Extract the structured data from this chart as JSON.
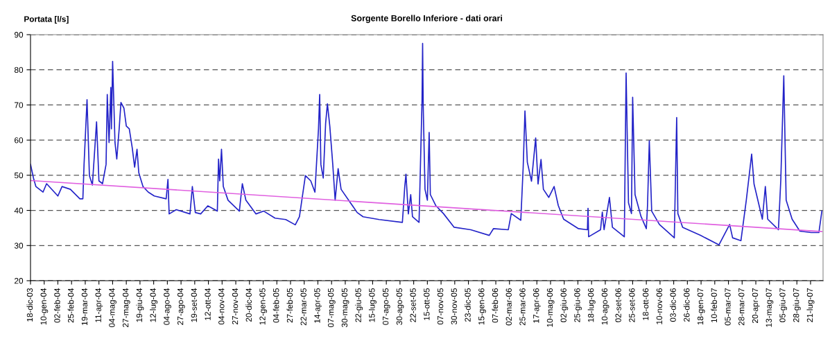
{
  "chart_data": {
    "type": "line",
    "title": "Sorgente Borello Inferiore - dati orari",
    "ylabel": "Portata [l/s]",
    "series": [
      {
        "color": "#2323c8",
        "x": [
          "2003-12-18",
          "2003-12-23",
          "2003-12-27",
          "2004-01-08",
          "2004-01-14",
          "2004-02-02",
          "2004-02-09",
          "2004-02-23",
          "2004-03-10",
          "2004-03-15",
          "2004-03-17",
          "2004-03-22",
          "2004-03-26",
          "2004-03-31",
          "2004-04-07",
          "2004-04-11",
          "2004-04-17",
          "2004-04-23",
          "2004-04-25",
          "2004-04-28",
          "2004-05-01",
          "2004-05-02",
          "2004-05-04",
          "2004-05-08",
          "2004-05-11",
          "2004-05-15",
          "2004-05-18",
          "2004-05-23",
          "2004-05-27",
          "2004-06-01",
          "2004-06-06",
          "2004-06-10",
          "2004-06-14",
          "2004-06-17",
          "2004-06-24",
          "2004-07-03",
          "2004-07-13",
          "2004-08-02",
          "2004-08-05",
          "2004-08-07",
          "2004-08-19",
          "2004-09-11",
          "2004-09-15",
          "2004-09-20",
          "2004-09-29",
          "2004-10-11",
          "2004-10-27",
          "2004-10-29",
          "2004-10-31",
          "2004-11-03",
          "2004-11-06",
          "2004-11-14",
          "2004-12-03",
          "2004-12-08",
          "2004-12-14",
          "2004-12-31",
          "2005-01-13",
          "2005-02-01",
          "2005-02-19",
          "2005-03-07",
          "2005-03-14",
          "2005-03-24",
          "2005-04-02",
          "2005-04-09",
          "2005-04-15",
          "2005-04-17",
          "2005-04-19",
          "2005-04-23",
          "2005-04-27",
          "2005-04-30",
          "2005-05-04",
          "2005-05-09",
          "2005-05-13",
          "2005-05-18",
          "2005-05-23",
          "2005-06-08",
          "2005-06-19",
          "2005-06-29",
          "2005-07-26",
          "2005-09-03",
          "2005-09-07",
          "2005-09-09",
          "2005-09-13",
          "2005-09-17",
          "2005-09-20",
          "2005-10-01",
          "2005-10-06",
          "2005-10-07",
          "2005-10-08",
          "2005-10-11",
          "2005-10-15",
          "2005-10-18",
          "2005-10-20",
          "2005-10-29",
          "2005-11-11",
          "2005-11-29",
          "2005-12-27",
          "2006-01-27",
          "2006-02-03",
          "2006-02-28",
          "2006-03-05",
          "2006-03-21",
          "2006-03-25",
          "2006-03-28",
          "2006-04-01",
          "2006-04-08",
          "2006-04-15",
          "2006-04-19",
          "2006-04-24",
          "2006-04-28",
          "2006-05-07",
          "2006-05-16",
          "2006-05-23",
          "2006-06-01",
          "2006-06-26",
          "2006-07-11",
          "2006-07-12",
          "2006-07-13",
          "2006-08-02",
          "2006-08-05",
          "2006-08-08",
          "2006-08-17",
          "2006-08-22",
          "2006-09-11",
          "2006-09-14",
          "2006-09-18",
          "2006-09-23",
          "2006-09-25",
          "2006-09-29",
          "2006-10-09",
          "2006-10-18",
          "2006-10-20",
          "2006-10-23",
          "2006-10-27",
          "2006-11-09",
          "2006-12-04",
          "2006-12-08",
          "2006-12-10",
          "2006-12-18",
          "2007-01-17",
          "2007-02-17",
          "2007-03-07",
          "2007-03-12",
          "2007-03-26",
          "2007-04-04",
          "2007-04-13",
          "2007-04-17",
          "2007-05-01",
          "2007-05-06",
          "2007-05-10",
          "2007-05-28",
          "2007-06-01",
          "2007-06-06",
          "2007-06-10",
          "2007-06-20",
          "2007-07-03",
          "2007-07-22",
          "2007-08-04",
          "2007-08-09"
        ],
        "values": [
          53.1,
          49.2,
          46.8,
          45.2,
          47.6,
          44.1,
          46.8,
          46.0,
          43.3,
          43.3,
          53.1,
          71.5,
          49.9,
          47.2,
          65.2,
          48.4,
          47.6,
          53.1,
          73.0,
          59.3,
          75.0,
          63.2,
          82.4,
          59.3,
          54.6,
          63.2,
          70.7,
          69.1,
          64.0,
          63.2,
          57.8,
          52.3,
          57.4,
          50.7,
          46.8,
          45.2,
          44.1,
          43.3,
          48.8,
          39.0,
          40.2,
          39.0,
          46.8,
          39.4,
          39.0,
          41.3,
          39.8,
          54.6,
          48.4,
          57.4,
          46.8,
          42.9,
          39.8,
          47.6,
          42.9,
          39.0,
          39.8,
          37.8,
          37.4,
          35.9,
          38.2,
          49.9,
          48.4,
          45.2,
          63.2,
          73.0,
          53.1,
          49.2,
          64.8,
          70.3,
          64.0,
          53.1,
          42.9,
          51.9,
          46.0,
          42.1,
          39.4,
          38.2,
          37.4,
          36.6,
          46.8,
          50.3,
          39.0,
          44.5,
          38.2,
          36.6,
          71.1,
          87.5,
          69.8,
          46.0,
          42.9,
          62.2,
          44.5,
          41.4,
          39.1,
          35.2,
          34.5,
          32.9,
          34.8,
          34.5,
          39.1,
          37.2,
          52.2,
          68.3,
          53.7,
          48.3,
          60.6,
          47.5,
          54.5,
          46.0,
          43.7,
          46.8,
          41.4,
          37.5,
          34.8,
          34.5,
          40.6,
          32.5,
          34.5,
          39.5,
          34.5,
          43.7,
          35.2,
          32.5,
          79.1,
          42.2,
          39.1,
          72.2,
          44.5,
          38.3,
          34.8,
          41.4,
          59.8,
          39.8,
          36.0,
          32.2,
          66.4,
          39.1,
          35.2,
          32.9,
          30.2,
          36.0,
          32.2,
          31.4,
          42.9,
          56.0,
          47.5,
          37.5,
          46.8,
          37.5,
          34.5,
          48.7,
          78.3,
          42.9,
          37.5,
          34.1,
          33.7,
          33.7,
          39.8
        ]
      },
      {
        "color": "#e060e0",
        "x": [
          "2003-12-18",
          "2007-08-09"
        ],
        "values": [
          48.5,
          34.0
        ]
      }
    ],
    "xlim": [
      "2003-12-18",
      "2007-08-11"
    ],
    "xticks": [
      {
        "value": "2003-12-18",
        "label": "18-dic-03"
      },
      {
        "value": "2004-01-10",
        "label": "10-gen-04"
      },
      {
        "value": "2004-02-02",
        "label": "02-feb-04"
      },
      {
        "value": "2004-02-25",
        "label": "25-feb-04"
      },
      {
        "value": "2004-03-19",
        "label": "19-mar-04"
      },
      {
        "value": "2004-04-11",
        "label": "11-apr-04"
      },
      {
        "value": "2004-05-04",
        "label": "04-mag-04"
      },
      {
        "value": "2004-05-27",
        "label": "27-mag-04"
      },
      {
        "value": "2004-06-19",
        "label": "19-giu-04"
      },
      {
        "value": "2004-07-12",
        "label": "12-lug-04"
      },
      {
        "value": "2004-08-04",
        "label": "04-ago-04"
      },
      {
        "value": "2004-08-27",
        "label": "27-ago-04"
      },
      {
        "value": "2004-09-19",
        "label": "19-set-04"
      },
      {
        "value": "2004-10-12",
        "label": "12-ott-04"
      },
      {
        "value": "2004-11-04",
        "label": "04-nov-04"
      },
      {
        "value": "2004-11-27",
        "label": "27-nov-04"
      },
      {
        "value": "2004-12-20",
        "label": "20-dic-04"
      },
      {
        "value": "2005-01-12",
        "label": "12-gen-05"
      },
      {
        "value": "2005-02-04",
        "label": "04-feb-05"
      },
      {
        "value": "2005-02-27",
        "label": "27-feb-05"
      },
      {
        "value": "2005-03-22",
        "label": "22-mar-05"
      },
      {
        "value": "2005-04-14",
        "label": "14-apr-05"
      },
      {
        "value": "2005-05-07",
        "label": "07-mag-05"
      },
      {
        "value": "2005-05-30",
        "label": "30-mag-05"
      },
      {
        "value": "2005-06-22",
        "label": "22-giu-05"
      },
      {
        "value": "2005-07-15",
        "label": "15-lug-05"
      },
      {
        "value": "2005-08-07",
        "label": "07-ago-05"
      },
      {
        "value": "2005-08-30",
        "label": "30-ago-05"
      },
      {
        "value": "2005-09-22",
        "label": "22-set-05"
      },
      {
        "value": "2005-10-15",
        "label": "15-ott-05"
      },
      {
        "value": "2005-11-07",
        "label": "07-nov-05"
      },
      {
        "value": "2005-11-30",
        "label": "30-nov-05"
      },
      {
        "value": "2005-12-23",
        "label": "23-dic-05"
      },
      {
        "value": "2006-01-15",
        "label": "15-gen-06"
      },
      {
        "value": "2006-02-07",
        "label": "07-feb-06"
      },
      {
        "value": "2006-03-02",
        "label": "02-mar-06"
      },
      {
        "value": "2006-03-25",
        "label": "25-mar-06"
      },
      {
        "value": "2006-04-17",
        "label": "17-apr-06"
      },
      {
        "value": "2006-05-10",
        "label": "10-mag-06"
      },
      {
        "value": "2006-06-02",
        "label": "02-giu-06"
      },
      {
        "value": "2006-06-25",
        "label": "25-giu-06"
      },
      {
        "value": "2006-07-18",
        "label": "18-lug-06"
      },
      {
        "value": "2006-08-10",
        "label": "10-ago-06"
      },
      {
        "value": "2006-09-02",
        "label": "02-set-06"
      },
      {
        "value": "2006-09-25",
        "label": "25-set-06"
      },
      {
        "value": "2006-10-18",
        "label": "18-ott-06"
      },
      {
        "value": "2006-11-10",
        "label": "10-nov-06"
      },
      {
        "value": "2006-12-03",
        "label": "03-dic-06"
      },
      {
        "value": "2006-12-26",
        "label": "26-dic-06"
      },
      {
        "value": "2007-01-18",
        "label": "18-gen-07"
      },
      {
        "value": "2007-02-10",
        "label": "10-feb-07"
      },
      {
        "value": "2007-03-05",
        "label": "05-mar-07"
      },
      {
        "value": "2007-03-28",
        "label": "28-mar-07"
      },
      {
        "value": "2007-04-20",
        "label": "20-apr-07"
      },
      {
        "value": "2007-05-13",
        "label": "13-mag-07"
      },
      {
        "value": "2007-06-05",
        "label": "05-giu-07"
      },
      {
        "value": "2007-06-28",
        "label": "28-giu-07"
      },
      {
        "value": "2007-07-21",
        "label": "21-lug-07"
      }
    ],
    "ylim": [
      20,
      90
    ],
    "yticks": [
      20,
      30,
      40,
      50,
      60,
      70,
      80,
      90
    ],
    "grid": "y",
    "marker": "none",
    "line_style": "solid",
    "legend": false
  }
}
